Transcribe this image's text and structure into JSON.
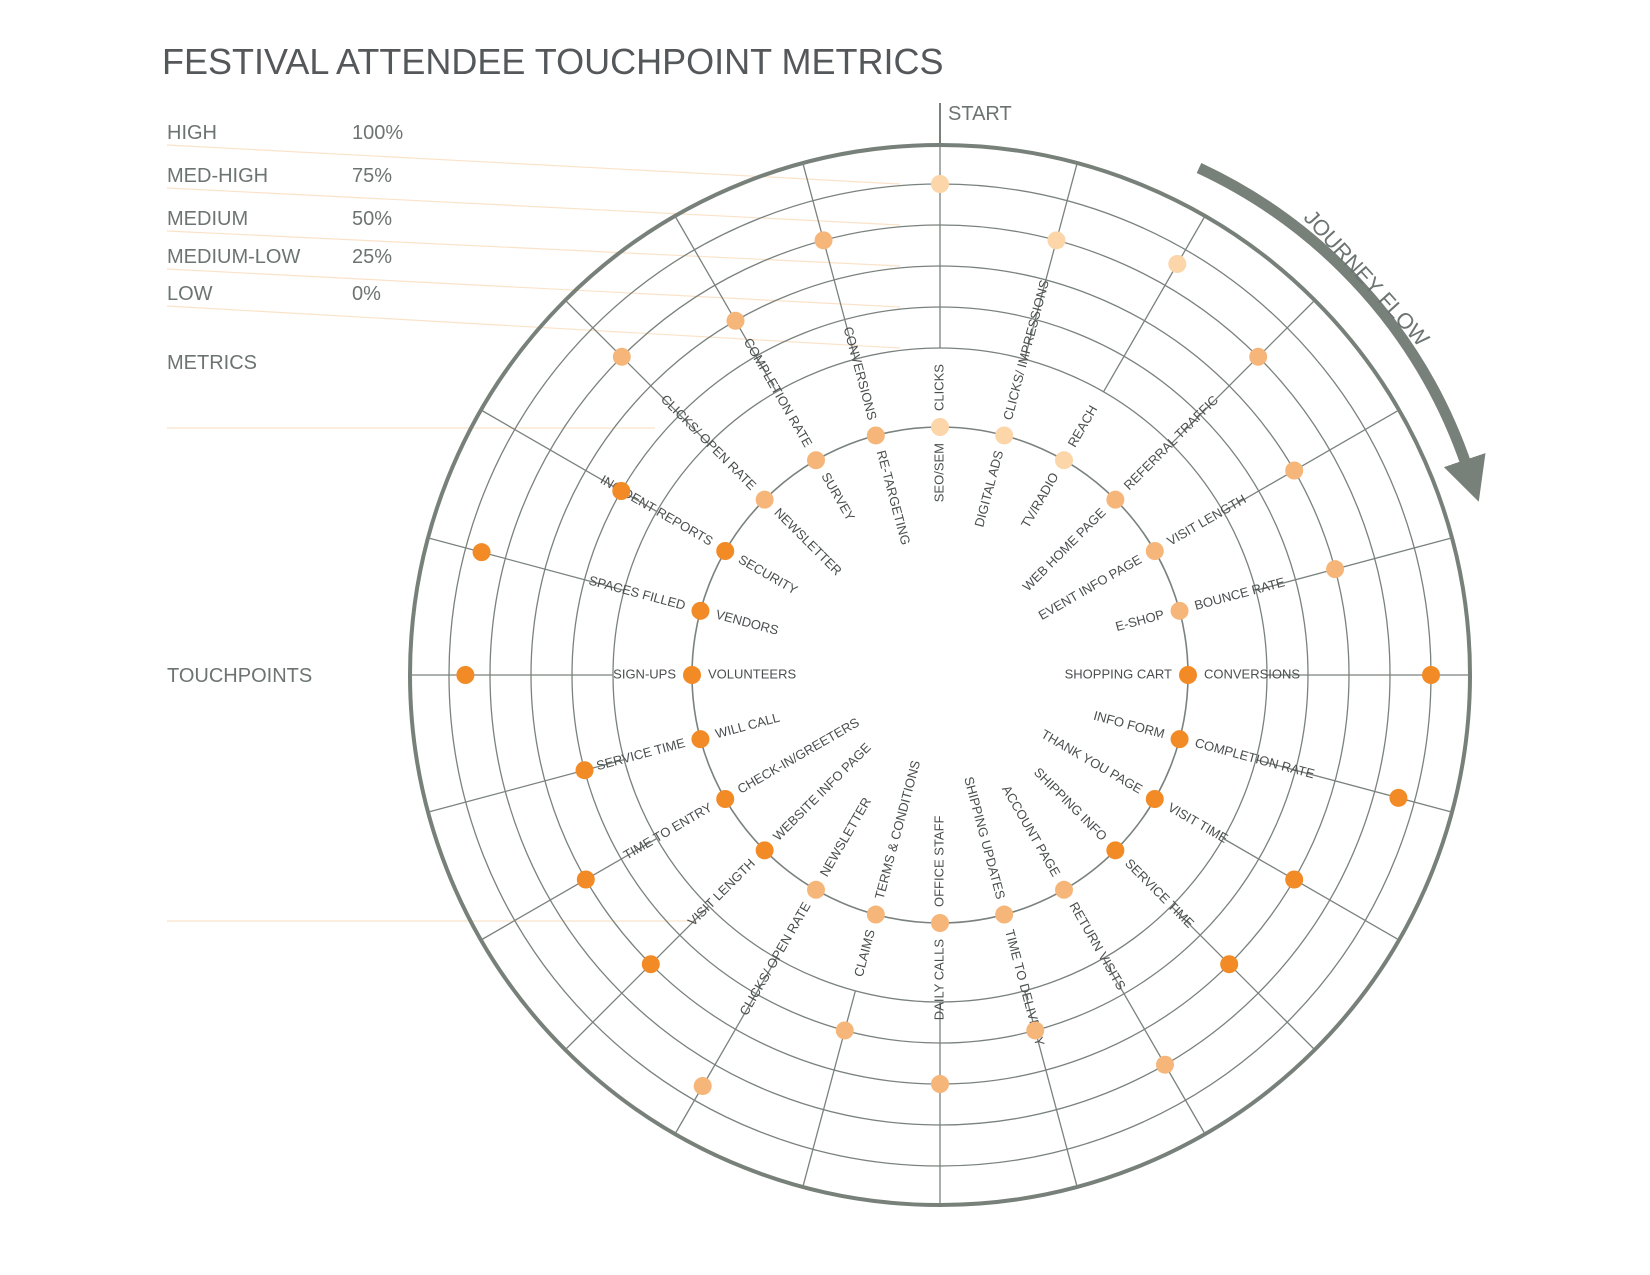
{
  "chart_data": {
    "type": "radial-scatter",
    "title": "FESTIVAL ATTENDEE TOUCHPOINT METRICS",
    "start_label": "START",
    "flow_label": "JOURNEY FLOW",
    "section_labels": {
      "metrics": "METRICS",
      "touchpoints": "TOUCHPOINTS"
    },
    "levels": [
      {
        "name": "HIGH",
        "percent": "100%",
        "value": 100
      },
      {
        "name": "MED-HIGH",
        "percent": "75%",
        "value": 75
      },
      {
        "name": "MEDIUM",
        "percent": "50%",
        "value": 50
      },
      {
        "name": "MEDIUM-LOW",
        "percent": "25%",
        "value": 25
      },
      {
        "name": "LOW",
        "percent": "0%",
        "value": 0
      }
    ],
    "colors": {
      "light": "#fcd5a8",
      "mid": "#f6b679",
      "dark": "#f28a25",
      "grid": "#7a827d",
      "frame": "#78807a"
    },
    "points": [
      {
        "touchpoint": "SEO/SEM",
        "metric": "CLICKS",
        "value": 100,
        "shade": "light"
      },
      {
        "touchpoint": "DIGITAL ADS",
        "metric": "CLICKS/ IMPRESSIONS",
        "value": 75,
        "shade": "light"
      },
      {
        "touchpoint": "TV/RADIO",
        "metric": "REACH",
        "value": 90,
        "shade": "light"
      },
      {
        "touchpoint": "WEB HOME PAGE",
        "metric": "REFERRAL TRAFFIC",
        "value": 75,
        "shade": "mid"
      },
      {
        "touchpoint": "EVENT INFO PAGE",
        "metric": "VISIT LENGTH",
        "value": 50,
        "shade": "mid"
      },
      {
        "touchpoint": "E-SHOP",
        "metric": "BOUNCE RATE",
        "value": 50,
        "shade": "mid"
      },
      {
        "touchpoint": "SHOPPING CART",
        "metric": "CONVERSIONS",
        "value": 100,
        "shade": "dark"
      },
      {
        "touchpoint": "INFO FORM",
        "metric": "COMPLETION RATE",
        "value": 90,
        "shade": "dark"
      },
      {
        "touchpoint": "THANK YOU PAGE",
        "metric": "VISIT TIME",
        "value": 50,
        "shade": "dark"
      },
      {
        "touchpoint": "SHIPPING INFO",
        "metric": "SERVICE TIME",
        "value": 50,
        "shade": "dark"
      },
      {
        "touchpoint": "ACCOUNT PAGE",
        "metric": "RETURN VISITS",
        "value": 75,
        "shade": "mid"
      },
      {
        "touchpoint": "SHIPPING UPDATES",
        "metric": "TIME TO DELIVERY",
        "value": 25,
        "shade": "mid"
      },
      {
        "touchpoint": "OFFICE STAFF",
        "metric": "DAILY CALLS",
        "value": 50,
        "shade": "mid"
      },
      {
        "touchpoint": "TERMS & CONDITIONS",
        "metric": "CLAIMS",
        "value": 25,
        "shade": "mid"
      },
      {
        "touchpoint": "NEWSLETTER",
        "metric": "CLICKS/ OPEN RATE",
        "value": 90,
        "shade": "mid"
      },
      {
        "touchpoint": "WEBSITE INFO PAGE",
        "metric": "VISIT LENGTH",
        "value": 50,
        "shade": "dark"
      },
      {
        "touchpoint": "CHECK-IN/GREETERS",
        "metric": "TIME TO ENTRY",
        "value": 50,
        "shade": "dark"
      },
      {
        "touchpoint": "WILL CALL",
        "metric": "SERVICE TIME",
        "value": 25,
        "shade": "dark"
      },
      {
        "touchpoint": "VOLUNTEERS",
        "metric": "SIGN-UPS",
        "value": 90,
        "shade": "dark"
      },
      {
        "touchpoint": "VENDORS",
        "metric": "SPACES FILLED",
        "value": 90,
        "shade": "dark"
      },
      {
        "touchpoint": "SECURITY",
        "metric": "INCIDENT REPORTS",
        "value": 25,
        "shade": "dark"
      },
      {
        "touchpoint": "NEWSLETTER",
        "metric": "CLICKS/ OPEN RATE",
        "value": 75,
        "shade": "mid"
      },
      {
        "touchpoint": "SURVEY",
        "metric": "COMPLETION RATE",
        "value": 50,
        "shade": "mid"
      },
      {
        "touchpoint": "RE-TARGETING",
        "metric": "CONVERSIONS",
        "value": 75,
        "shade": "mid"
      }
    ]
  }
}
